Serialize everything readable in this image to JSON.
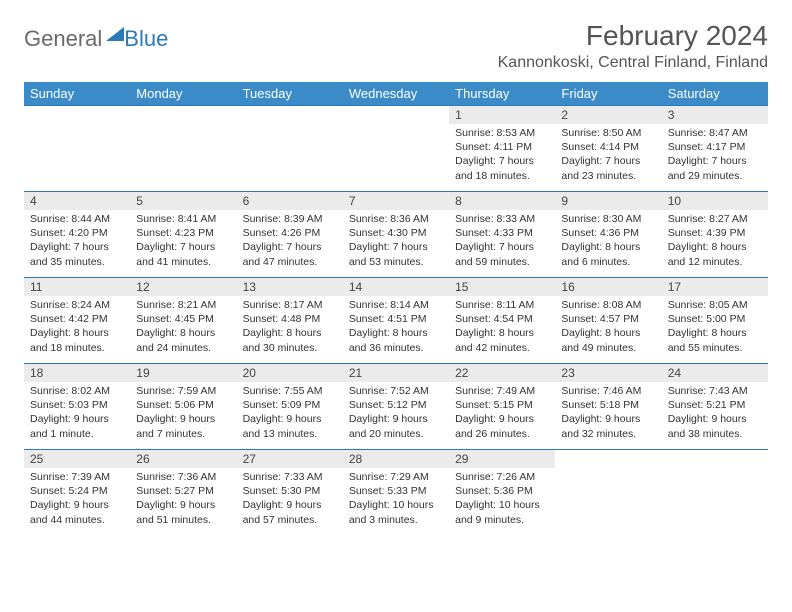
{
  "logo": {
    "text_gray": "General",
    "text_blue": "Blue"
  },
  "title": "February 2024",
  "location": "Kannonkoski, Central Finland, Finland",
  "colors": {
    "header_bg": "#3b8bc8",
    "header_text": "#ffffff",
    "row_border": "#2a7ab9",
    "daynum_bg": "#ebebeb",
    "body_text": "#333333",
    "logo_gray": "#6a6a6a",
    "logo_blue": "#2a7ab9"
  },
  "weekdays": [
    "Sunday",
    "Monday",
    "Tuesday",
    "Wednesday",
    "Thursday",
    "Friday",
    "Saturday"
  ],
  "weeks": [
    [
      null,
      null,
      null,
      null,
      {
        "n": "1",
        "sr": "8:53 AM",
        "ss": "4:11 PM",
        "dl": "7 hours and 18 minutes."
      },
      {
        "n": "2",
        "sr": "8:50 AM",
        "ss": "4:14 PM",
        "dl": "7 hours and 23 minutes."
      },
      {
        "n": "3",
        "sr": "8:47 AM",
        "ss": "4:17 PM",
        "dl": "7 hours and 29 minutes."
      }
    ],
    [
      {
        "n": "4",
        "sr": "8:44 AM",
        "ss": "4:20 PM",
        "dl": "7 hours and 35 minutes."
      },
      {
        "n": "5",
        "sr": "8:41 AM",
        "ss": "4:23 PM",
        "dl": "7 hours and 41 minutes."
      },
      {
        "n": "6",
        "sr": "8:39 AM",
        "ss": "4:26 PM",
        "dl": "7 hours and 47 minutes."
      },
      {
        "n": "7",
        "sr": "8:36 AM",
        "ss": "4:30 PM",
        "dl": "7 hours and 53 minutes."
      },
      {
        "n": "8",
        "sr": "8:33 AM",
        "ss": "4:33 PM",
        "dl": "7 hours and 59 minutes."
      },
      {
        "n": "9",
        "sr": "8:30 AM",
        "ss": "4:36 PM",
        "dl": "8 hours and 6 minutes."
      },
      {
        "n": "10",
        "sr": "8:27 AM",
        "ss": "4:39 PM",
        "dl": "8 hours and 12 minutes."
      }
    ],
    [
      {
        "n": "11",
        "sr": "8:24 AM",
        "ss": "4:42 PM",
        "dl": "8 hours and 18 minutes."
      },
      {
        "n": "12",
        "sr": "8:21 AM",
        "ss": "4:45 PM",
        "dl": "8 hours and 24 minutes."
      },
      {
        "n": "13",
        "sr": "8:17 AM",
        "ss": "4:48 PM",
        "dl": "8 hours and 30 minutes."
      },
      {
        "n": "14",
        "sr": "8:14 AM",
        "ss": "4:51 PM",
        "dl": "8 hours and 36 minutes."
      },
      {
        "n": "15",
        "sr": "8:11 AM",
        "ss": "4:54 PM",
        "dl": "8 hours and 42 minutes."
      },
      {
        "n": "16",
        "sr": "8:08 AM",
        "ss": "4:57 PM",
        "dl": "8 hours and 49 minutes."
      },
      {
        "n": "17",
        "sr": "8:05 AM",
        "ss": "5:00 PM",
        "dl": "8 hours and 55 minutes."
      }
    ],
    [
      {
        "n": "18",
        "sr": "8:02 AM",
        "ss": "5:03 PM",
        "dl": "9 hours and 1 minute."
      },
      {
        "n": "19",
        "sr": "7:59 AM",
        "ss": "5:06 PM",
        "dl": "9 hours and 7 minutes."
      },
      {
        "n": "20",
        "sr": "7:55 AM",
        "ss": "5:09 PM",
        "dl": "9 hours and 13 minutes."
      },
      {
        "n": "21",
        "sr": "7:52 AM",
        "ss": "5:12 PM",
        "dl": "9 hours and 20 minutes."
      },
      {
        "n": "22",
        "sr": "7:49 AM",
        "ss": "5:15 PM",
        "dl": "9 hours and 26 minutes."
      },
      {
        "n": "23",
        "sr": "7:46 AM",
        "ss": "5:18 PM",
        "dl": "9 hours and 32 minutes."
      },
      {
        "n": "24",
        "sr": "7:43 AM",
        "ss": "5:21 PM",
        "dl": "9 hours and 38 minutes."
      }
    ],
    [
      {
        "n": "25",
        "sr": "7:39 AM",
        "ss": "5:24 PM",
        "dl": "9 hours and 44 minutes."
      },
      {
        "n": "26",
        "sr": "7:36 AM",
        "ss": "5:27 PM",
        "dl": "9 hours and 51 minutes."
      },
      {
        "n": "27",
        "sr": "7:33 AM",
        "ss": "5:30 PM",
        "dl": "9 hours and 57 minutes."
      },
      {
        "n": "28",
        "sr": "7:29 AM",
        "ss": "5:33 PM",
        "dl": "10 hours and 3 minutes."
      },
      {
        "n": "29",
        "sr": "7:26 AM",
        "ss": "5:36 PM",
        "dl": "10 hours and 9 minutes."
      },
      null,
      null
    ]
  ],
  "labels": {
    "sunrise": "Sunrise: ",
    "sunset": "Sunset: ",
    "daylight": "Daylight: "
  }
}
